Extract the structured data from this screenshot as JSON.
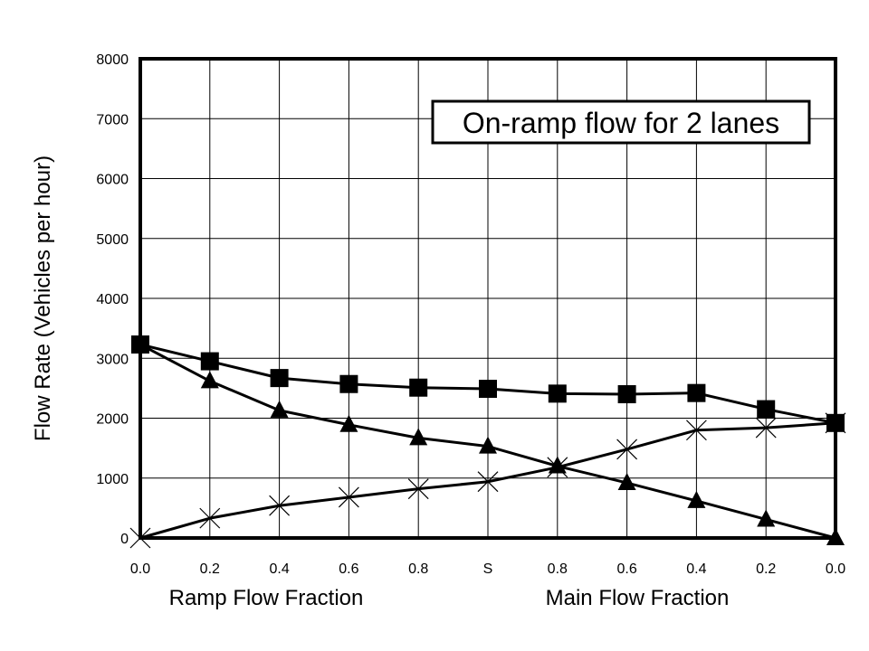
{
  "chart_data": {
    "type": "line",
    "title": "On-ramp flow for 2 lanes",
    "ylabel": "Flow Rate (Vehicles per hour)",
    "xlabel_left": "Ramp Flow Fraction",
    "xlabel_right": "Main Flow Fraction",
    "ylim": [
      0,
      8000
    ],
    "yticks": [
      "0",
      "1000",
      "2000",
      "3000",
      "4000",
      "5000",
      "6000",
      "7000",
      "8000"
    ],
    "categories": [
      "0.0",
      "0.2",
      "0.4",
      "0.6",
      "0.8",
      "S",
      "0.8",
      "0.6",
      "0.4",
      "0.2",
      "0.0"
    ],
    "grid": true,
    "series": [
      {
        "marker": "square",
        "values": [
          3230,
          2950,
          2670,
          2570,
          2510,
          2490,
          2410,
          2400,
          2420,
          2150,
          1920
        ]
      },
      {
        "marker": "triangle",
        "values": [
          3230,
          2620,
          2130,
          1890,
          1670,
          1530,
          1200,
          920,
          620,
          310,
          0
        ]
      },
      {
        "marker": "x",
        "values": [
          0,
          330,
          540,
          680,
          820,
          940,
          1180,
          1480,
          1800,
          1840,
          1920
        ]
      }
    ],
    "colors": {
      "line": "#000000",
      "grid": "#000000",
      "background": "#ffffff"
    }
  }
}
